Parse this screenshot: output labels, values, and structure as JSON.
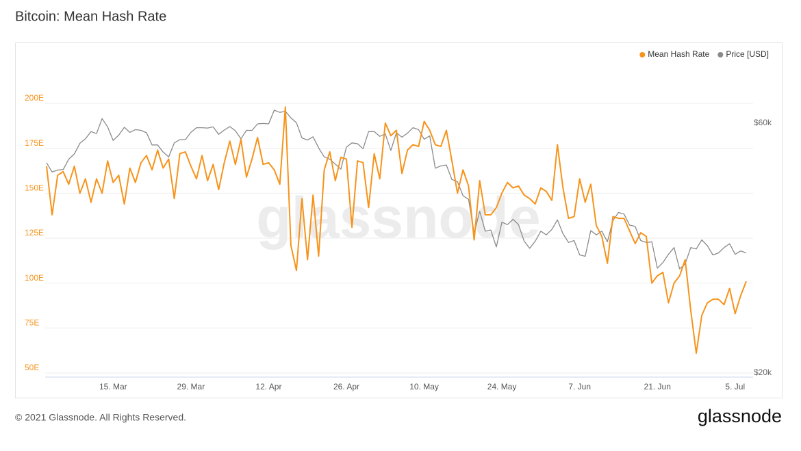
{
  "chart_data": {
    "type": "line",
    "title": "Bitcoin: Mean Hash Rate",
    "categories": [
      null,
      null,
      null,
      null,
      null,
      null,
      null,
      null,
      null,
      null,
      null,
      null,
      "15. Mar",
      null,
      null,
      null,
      null,
      null,
      null,
      null,
      null,
      null,
      null,
      null,
      null,
      null,
      "29. Mar",
      null,
      null,
      null,
      null,
      null,
      null,
      null,
      null,
      null,
      null,
      null,
      null,
      null,
      "12. Apr",
      null,
      null,
      null,
      null,
      null,
      null,
      null,
      null,
      null,
      null,
      null,
      null,
      null,
      "26. Apr",
      null,
      null,
      null,
      null,
      null,
      null,
      null,
      null,
      null,
      null,
      null,
      null,
      null,
      "10. May",
      null,
      null,
      null,
      null,
      null,
      null,
      null,
      null,
      null,
      null,
      null,
      null,
      null,
      "24. May",
      null,
      null,
      null,
      null,
      null,
      null,
      null,
      null,
      null,
      null,
      null,
      null,
      null,
      "7. Jun",
      null,
      null,
      null,
      null,
      null,
      null,
      null,
      null,
      null,
      null,
      null,
      null,
      null,
      "21. Jun",
      null,
      null,
      null,
      null,
      null,
      null,
      null,
      null,
      null,
      null,
      null,
      null,
      null,
      "5. Jul",
      null,
      null
    ],
    "series": [
      {
        "name": "Mean Hash Rate",
        "color": "#f7931a",
        "values": [
          165,
          138,
          160,
          162,
          155,
          165,
          150,
          158,
          145,
          158,
          150,
          168,
          156,
          160,
          144,
          164,
          156,
          167,
          171,
          163,
          174,
          164,
          169,
          147,
          172,
          173,
          165,
          158,
          171,
          157,
          166,
          152,
          167,
          179,
          166,
          180,
          159,
          169,
          181,
          166,
          167,
          163,
          155,
          198,
          121,
          107,
          147,
          113,
          149,
          115,
          163,
          173,
          157,
          170,
          169,
          131,
          168,
          167,
          142,
          172,
          158,
          189,
          182,
          185,
          161,
          174,
          177,
          176,
          190,
          185,
          177,
          176,
          185,
          168,
          150,
          163,
          154,
          124,
          157,
          138,
          138,
          142,
          150,
          156,
          153,
          154,
          149,
          147,
          144,
          153,
          151,
          146,
          177,
          153,
          136,
          137,
          158,
          145,
          155,
          132,
          126,
          111,
          137,
          136,
          136,
          129,
          122,
          128,
          126,
          100,
          104,
          106,
          89,
          100,
          104,
          113,
          85,
          61,
          82,
          89,
          91,
          91,
          88,
          97,
          83,
          93,
          101
        ]
      },
      {
        "name": "Price [USD]",
        "color": "#8a8a8a",
        "axis": "y2",
        "values": [
          50400,
          48400,
          48800,
          48900,
          51200,
          52400,
          54900,
          56000,
          57800,
          57300,
          61200,
          59000,
          55600,
          56900,
          58900,
          57600,
          58300,
          58100,
          57500,
          54500,
          54500,
          52800,
          51700,
          55000,
          55800,
          55800,
          57600,
          58800,
          58800,
          58700,
          59000,
          57100,
          58200,
          59100,
          58000,
          56000,
          58100,
          58100,
          59800,
          59900,
          59800,
          63500,
          62900,
          63200,
          61400,
          60100,
          56200,
          55700,
          56500,
          53800,
          51700,
          51200,
          50100,
          49000,
          54000,
          55000,
          54800,
          53600,
          57800,
          57800,
          56600,
          57200,
          53200,
          57500,
          56400,
          57400,
          58800,
          58300,
          55900,
          56700,
          49200,
          49700,
          49900,
          46800,
          46400,
          43600,
          42900,
          37000,
          40700,
          37300,
          37500,
          34800,
          38800,
          38400,
          39300,
          38400,
          35700,
          34600,
          35700,
          37300,
          36700,
          37600,
          39200,
          36900,
          35500,
          35800,
          33600,
          33400,
          37400,
          36700,
          37300,
          35600,
          39100,
          40500,
          40200,
          38300,
          38100,
          35800,
          35500,
          35600,
          31700,
          32500,
          33700,
          34700,
          31600,
          32300,
          34700,
          34500,
          35900,
          35000,
          33600,
          33900,
          34700,
          35300,
          33700,
          34200,
          33900
        ]
      }
    ],
    "ylim": [
      47.7,
      224
    ],
    "yticks": [
      {
        "value": 50,
        "label": "50E"
      },
      {
        "value": 75,
        "label": "75E"
      },
      {
        "value": 100,
        "label": "100E"
      },
      {
        "value": 125,
        "label": "125E"
      },
      {
        "value": 150,
        "label": "150E"
      },
      {
        "value": 175,
        "label": "175E"
      },
      {
        "value": 200,
        "label": "200E"
      }
    ],
    "y2lim": [
      19640,
      79100
    ],
    "y2ticks": [
      {
        "value": 20000,
        "label": "$20k"
      },
      {
        "value": 60000,
        "label": "$60k"
      }
    ],
    "y2log": true,
    "grid": true,
    "legend": "top-right"
  },
  "watermark": "glassnode",
  "footer": "© 2021 Glassnode. All Rights Reserved.",
  "logo": "glassnode"
}
